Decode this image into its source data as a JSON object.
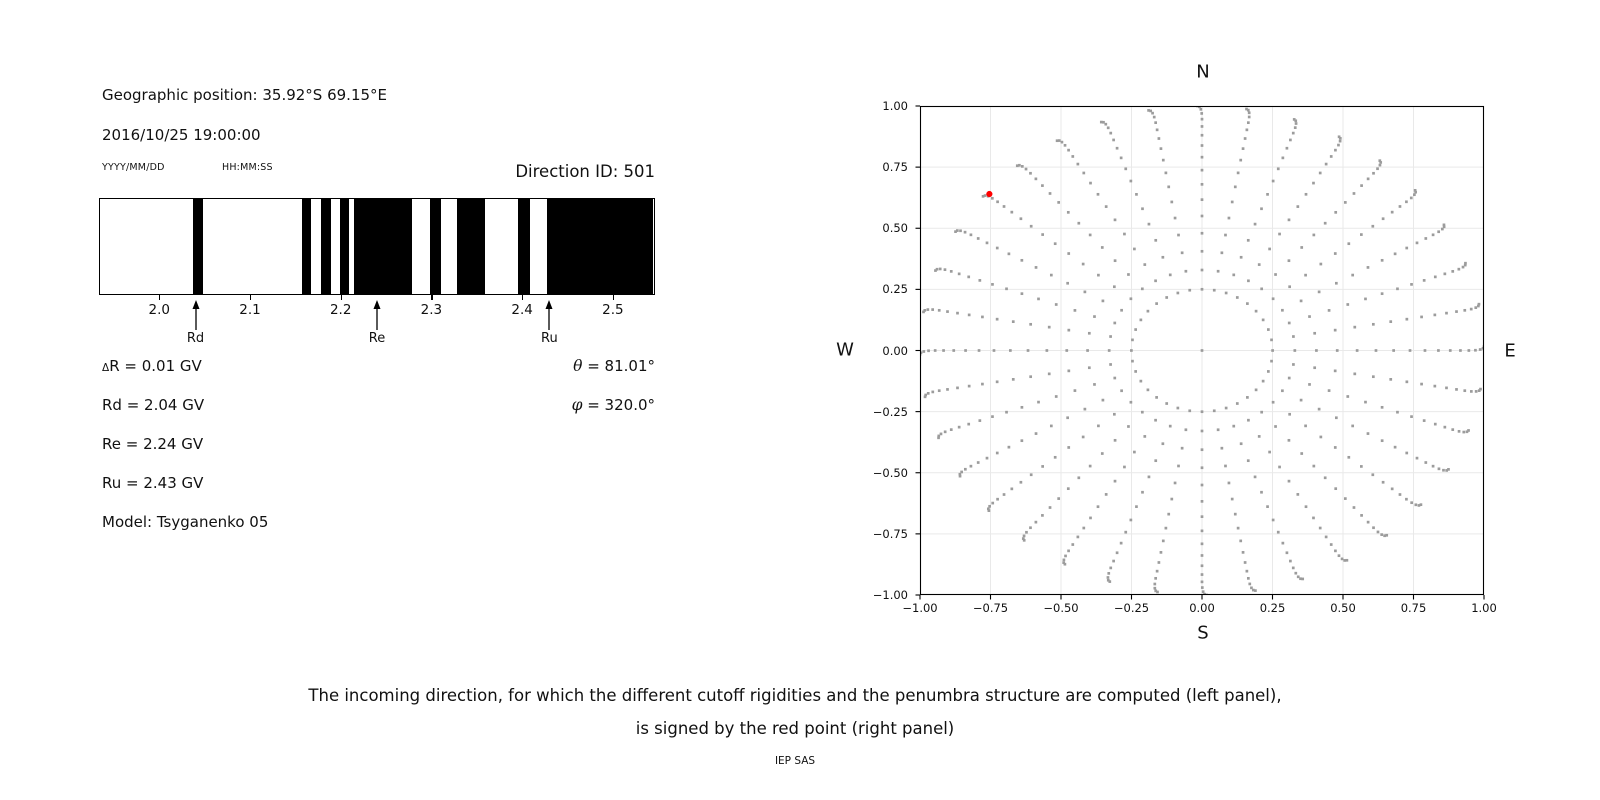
{
  "left_panel": {
    "geo_position": "Geographic position: 35.92°S 69.15°E",
    "datetime": "2016/10/25 19:00:00",
    "date_format": "YYYY/MM/DD",
    "time_format": "HH:MM:SS",
    "direction_id": "Direction ID: 501",
    "params_left": [
      "ΔR = 0.01 GV",
      "Rd = 2.04 GV",
      "Re = 2.24 GV",
      "Ru = 2.43 GV",
      "Model: Tsyganenko 05"
    ],
    "params_right": [
      {
        "sym": "θ",
        "rest": " = 81.01°"
      },
      {
        "sym": "φ",
        "rest": " = 320.0°"
      }
    ]
  },
  "caption": {
    "line1": "The incoming direction, for which the different cutoff rigidities and the penumbra structure are computed (left panel),",
    "line2": "is signed by the red point (right panel)",
    "credit": "IEP SAS"
  },
  "chart_data": [
    {
      "type": "bar",
      "name": "penumbra-structure-barcode",
      "title": "Direction ID: 501",
      "x_range_gv": [
        1.935,
        2.545
      ],
      "x_ticks": [
        2.0,
        2.1,
        2.2,
        2.3,
        2.4,
        2.5
      ],
      "black_bands_gv": [
        [
          2.037,
          2.049
        ],
        [
          2.158,
          2.168
        ],
        [
          2.179,
          2.19
        ],
        [
          2.199,
          2.209
        ],
        [
          2.215,
          2.279
        ],
        [
          2.299,
          2.311
        ],
        [
          2.328,
          2.359
        ],
        [
          2.396,
          2.409
        ],
        [
          2.428,
          2.545
        ]
      ],
      "arrows": [
        {
          "label": "Rd",
          "x_gv": 2.04
        },
        {
          "label": "Re",
          "x_gv": 2.24
        },
        {
          "label": "Ru",
          "x_gv": 2.43
        }
      ],
      "values": {
        "delta_R_GV": 0.01,
        "Rd_GV": 2.04,
        "Re_GV": 2.24,
        "Ru_GV": 2.43,
        "theta_deg": 81.01,
        "phi_deg": 320.0,
        "model": "Tsyganenko 05"
      },
      "bar_color": "#000000",
      "bg_color": "#ffffff"
    },
    {
      "type": "scatter",
      "name": "incoming-direction-grid",
      "xlim": [
        -1,
        1
      ],
      "ylim": [
        -1,
        1
      ],
      "x_ticks": [
        -1.0,
        -0.75,
        -0.5,
        -0.25,
        0.0,
        0.25,
        0.5,
        0.75,
        1.0
      ],
      "y_ticks": [
        1.0,
        0.75,
        0.5,
        0.25,
        0.0,
        -0.25,
        -0.5,
        -0.75,
        -1.0
      ],
      "compass": {
        "north": "N",
        "south": "S",
        "west": "W",
        "east": "E"
      },
      "grid_on": true,
      "spokes": {
        "azimuth_count": 36,
        "azimuth_step_deg": 10,
        "zenith_start_deg": 14.5,
        "zenith_end_deg": 90,
        "dots_per_spoke": 17,
        "radial_map": "sin(zenith)",
        "tip_hook_units": 0.016,
        "hook_start_deg": 71
      },
      "center_dot": {
        "x": 0,
        "y": 0
      },
      "red_point": {
        "x": -0.754,
        "y": 0.64
      },
      "dot_color": "#9c9c9c",
      "red_color": "#ff0000",
      "grid_color": "#e9e9e9",
      "spine_color": "#000000"
    }
  ]
}
